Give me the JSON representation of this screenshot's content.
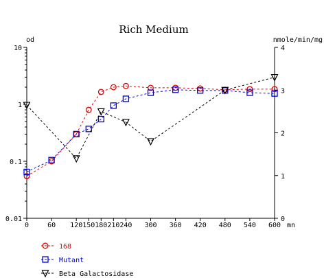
{
  "chart_data": {
    "type": "line",
    "title": "Rich Medium",
    "y_left_unit": "od",
    "y_right_unit": "nmole/min/mg",
    "x_unit": "mn",
    "x_ticks": [
      "0",
      "60",
      "120",
      "150",
      "180",
      "210",
      "240",
      "300",
      "360",
      "420",
      "480",
      "540",
      "600"
    ],
    "x_tick_values": [
      0,
      60,
      120,
      150,
      180,
      210,
      240,
      300,
      360,
      420,
      480,
      540,
      600
    ],
    "y_left_ticks": [
      "10",
      "1",
      "0.1",
      "0.01"
    ],
    "y_left_tick_values": [
      10,
      1,
      0.1,
      0.01
    ],
    "y_left_scale": "log",
    "y_right_ticks": [
      "4",
      "3",
      "2",
      "1",
      "0"
    ],
    "y_right_tick_values": [
      4,
      3,
      2,
      1,
      0
    ],
    "xlim": [
      0,
      600
    ],
    "ylim_left": [
      0.01,
      10
    ],
    "ylim_right": [
      0,
      4
    ],
    "grid": false,
    "legend_position": "bottom-left",
    "series": [
      {
        "name": "168",
        "axis": "left",
        "marker": "circle",
        "color": "#e00000",
        "x": [
          0,
          60,
          120,
          150,
          180,
          210,
          240,
          300,
          360,
          420,
          480,
          540,
          600
        ],
        "y": [
          0.055,
          0.1,
          0.3,
          0.8,
          1.65,
          2.0,
          2.1,
          1.95,
          1.95,
          1.9,
          1.8,
          1.85,
          1.85
        ]
      },
      {
        "name": "Mutant",
        "axis": "left",
        "marker": "square",
        "color": "#0000e0",
        "x": [
          0,
          60,
          120,
          150,
          180,
          210,
          240,
          300,
          360,
          420,
          480,
          540,
          600
        ],
        "y": [
          0.065,
          0.105,
          0.3,
          0.37,
          0.55,
          0.95,
          1.25,
          1.6,
          1.8,
          1.75,
          1.75,
          1.6,
          1.55
        ]
      },
      {
        "name": "Beta Galactosidase",
        "axis": "right",
        "marker": "triangle-down",
        "color": "#000000",
        "x": [
          0,
          120,
          180,
          240,
          300,
          480,
          600
        ],
        "y": [
          2.65,
          1.4,
          2.5,
          2.25,
          1.8,
          3.0,
          3.3
        ]
      }
    ]
  }
}
